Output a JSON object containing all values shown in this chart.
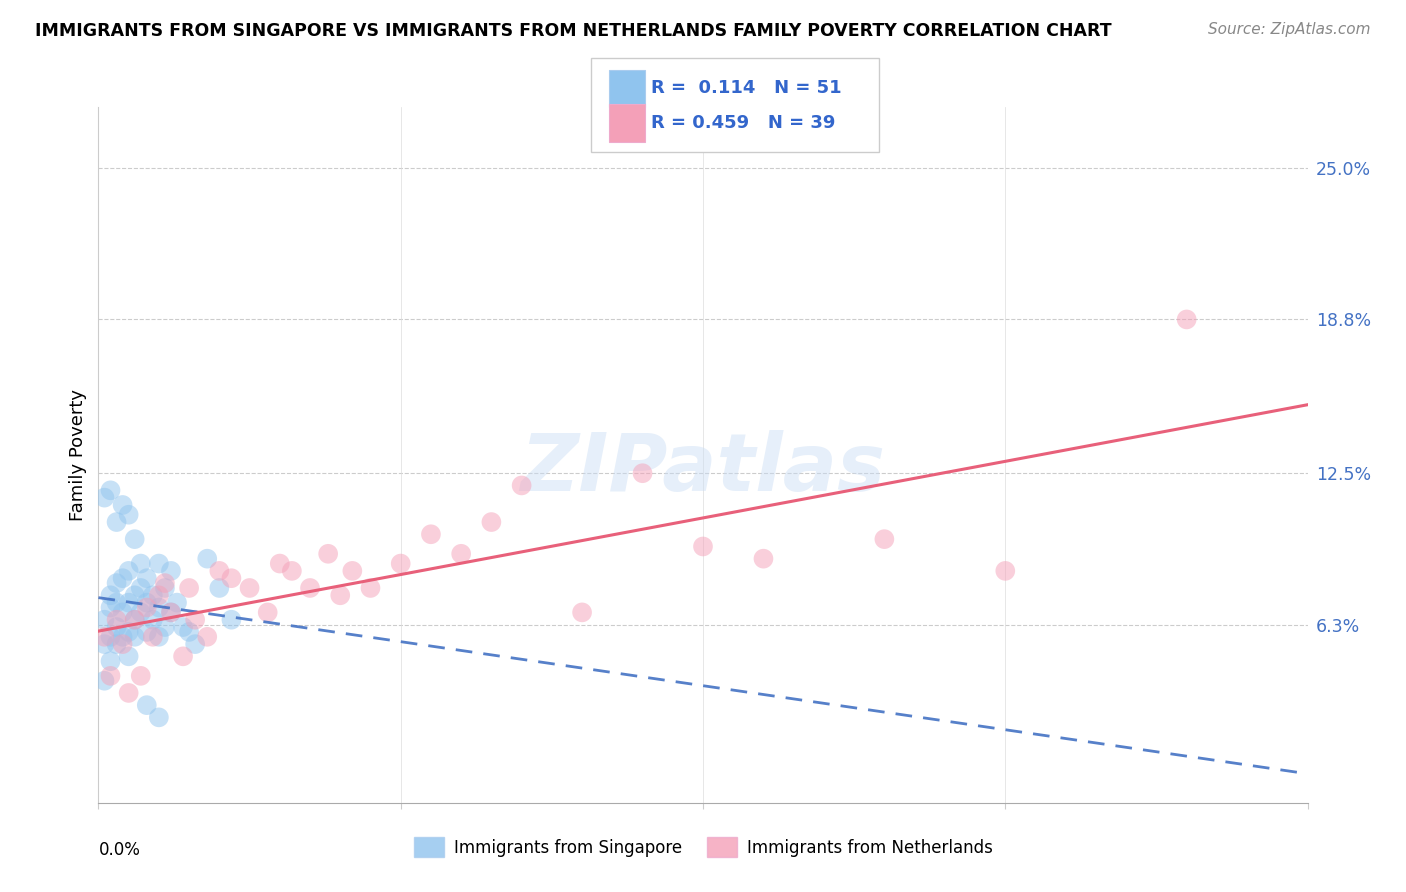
{
  "title": "IMMIGRANTS FROM SINGAPORE VS IMMIGRANTS FROM NETHERLANDS FAMILY POVERTY CORRELATION CHART",
  "source": "Source: ZipAtlas.com",
  "ylabel": "Family Poverty",
  "ytick_values": [
    0.063,
    0.125,
    0.188,
    0.25
  ],
  "xlim": [
    0.0,
    0.2
  ],
  "ylim": [
    -0.01,
    0.275
  ],
  "singapore_R": 0.114,
  "singapore_N": 51,
  "netherlands_R": 0.459,
  "netherlands_N": 39,
  "singapore_color": "#90C4EE",
  "netherlands_color": "#F4A0B8",
  "singapore_line_color": "#4472C4",
  "netherlands_line_color": "#E8607A",
  "watermark": "ZIPatlas",
  "singapore_points_x": [
    0.001,
    0.001,
    0.001,
    0.002,
    0.002,
    0.002,
    0.002,
    0.003,
    0.003,
    0.003,
    0.003,
    0.004,
    0.004,
    0.004,
    0.005,
    0.005,
    0.005,
    0.005,
    0.006,
    0.006,
    0.006,
    0.007,
    0.007,
    0.007,
    0.008,
    0.008,
    0.008,
    0.009,
    0.009,
    0.01,
    0.01,
    0.01,
    0.011,
    0.011,
    0.012,
    0.012,
    0.013,
    0.014,
    0.015,
    0.016,
    0.001,
    0.002,
    0.003,
    0.004,
    0.005,
    0.006,
    0.008,
    0.01,
    0.018,
    0.02,
    0.022
  ],
  "singapore_points_y": [
    0.055,
    0.065,
    0.04,
    0.07,
    0.058,
    0.075,
    0.048,
    0.062,
    0.072,
    0.055,
    0.08,
    0.058,
    0.068,
    0.082,
    0.06,
    0.072,
    0.05,
    0.085,
    0.065,
    0.075,
    0.058,
    0.068,
    0.078,
    0.088,
    0.06,
    0.072,
    0.082,
    0.065,
    0.075,
    0.058,
    0.07,
    0.088,
    0.062,
    0.078,
    0.068,
    0.085,
    0.072,
    0.062,
    0.06,
    0.055,
    0.115,
    0.118,
    0.105,
    0.112,
    0.108,
    0.098,
    0.03,
    0.025,
    0.09,
    0.078,
    0.065
  ],
  "netherlands_points_x": [
    0.001,
    0.002,
    0.003,
    0.004,
    0.005,
    0.006,
    0.007,
    0.008,
    0.009,
    0.01,
    0.011,
    0.012,
    0.014,
    0.015,
    0.016,
    0.018,
    0.02,
    0.022,
    0.025,
    0.028,
    0.03,
    0.032,
    0.035,
    0.038,
    0.04,
    0.042,
    0.045,
    0.05,
    0.055,
    0.06,
    0.065,
    0.07,
    0.08,
    0.09,
    0.1,
    0.11,
    0.13,
    0.15,
    0.18
  ],
  "netherlands_points_y": [
    0.058,
    0.042,
    0.065,
    0.055,
    0.035,
    0.065,
    0.042,
    0.07,
    0.058,
    0.075,
    0.08,
    0.068,
    0.05,
    0.078,
    0.065,
    0.058,
    0.085,
    0.082,
    0.078,
    0.068,
    0.088,
    0.085,
    0.078,
    0.092,
    0.075,
    0.085,
    0.078,
    0.088,
    0.1,
    0.092,
    0.105,
    0.12,
    0.068,
    0.125,
    0.095,
    0.09,
    0.098,
    0.085,
    0.188
  ]
}
